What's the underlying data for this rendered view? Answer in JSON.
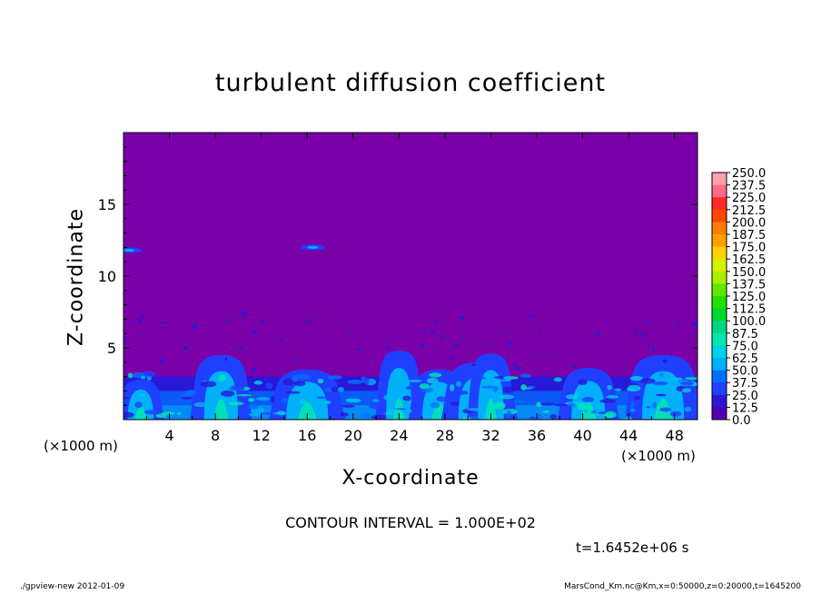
{
  "chart_data": {
    "type": "heatmap",
    "title": "turbulent diffusion coefficient",
    "xlabel": "X-coordinate",
    "ylabel": "Z-coordinate",
    "x_unit_label": "(×1000 m)",
    "xlim": [
      0,
      50
    ],
    "ylim": [
      0,
      20
    ],
    "x_ticks": [
      "4",
      "8",
      "12",
      "16",
      "20",
      "24",
      "28",
      "32",
      "36",
      "40",
      "44",
      "48"
    ],
    "y_ticks": [
      "5",
      "10",
      "15"
    ],
    "colorbar": {
      "levels": [
        "250.0",
        "237.5",
        "225.0",
        "212.5",
        "200.0",
        "187.5",
        "175.0",
        "162.5",
        "150.0",
        "137.5",
        "125.0",
        "112.5",
        "100.0",
        "87.5",
        "75.0",
        "62.5",
        "50.0",
        "37.5",
        "25.0",
        "12.5",
        "0.0"
      ],
      "colors": [
        "#ff9fb0",
        "#ff6b80",
        "#ff2a2a",
        "#ff4500",
        "#ff7a00",
        "#ff9f00",
        "#ffd200",
        "#d8f000",
        "#a8f000",
        "#60e800",
        "#20e000",
        "#00d830",
        "#00d880",
        "#00e8b0",
        "#00d0e8",
        "#00b0f8",
        "#0070ff",
        "#2040ff",
        "#2818d8",
        "#5000b0"
      ],
      "background_color": "#7a00a8"
    },
    "contour_interval": "CONTOUR INTERVAL = 1.000E+02",
    "turbulent_plumes_x": [
      1.5,
      8.5,
      16,
      24,
      27.5,
      31,
      32,
      40.5,
      47
    ],
    "plume_top_z": [
      2.8,
      4.5,
      3.5,
      4.8,
      3.5,
      4.0,
      4.6,
      3.6,
      4.5
    ],
    "isolated_patches": [
      {
        "x": 0.5,
        "z": 11.8
      },
      {
        "x": 16.5,
        "z": 12.0
      }
    ]
  },
  "annotations": {
    "time": "t=1.6452e+06 s",
    "footer_left": "./gpview-new   2012-01-09",
    "footer_right": "MarsCond_Km.nc@Km,x=0:50000,z=0:20000,t=1645200"
  }
}
